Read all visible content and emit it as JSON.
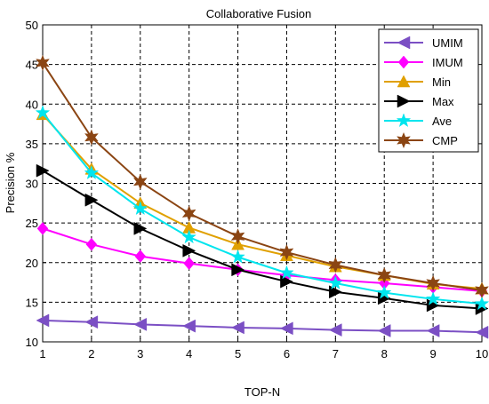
{
  "chart_data": {
    "type": "line",
    "title": "Collaborative Fusion",
    "xlabel": "TOP-N",
    "ylabel": "Precision %",
    "x": [
      1,
      2,
      3,
      4,
      5,
      6,
      7,
      8,
      9,
      10
    ],
    "xlim": [
      1,
      10
    ],
    "ylim": [
      10,
      50
    ],
    "yticks": [
      10,
      15,
      20,
      25,
      30,
      35,
      40,
      45,
      50
    ],
    "grid": true,
    "legend_position": "top-right",
    "series": [
      {
        "name": "UMIM",
        "color": "#7b4fc4",
        "marker": "triangle-left",
        "values": [
          12.7,
          12.5,
          12.2,
          12.0,
          11.8,
          11.7,
          11.5,
          11.4,
          11.4,
          11.2
        ]
      },
      {
        "name": "IMUM",
        "color": "#ff00ff",
        "marker": "diamond",
        "values": [
          24.3,
          22.3,
          20.8,
          19.9,
          19.1,
          18.4,
          17.8,
          17.4,
          16.9,
          16.4
        ]
      },
      {
        "name": "Min",
        "color": "#e0a000",
        "marker": "triangle-up",
        "values": [
          38.7,
          31.8,
          27.5,
          24.4,
          22.3,
          20.9,
          19.5,
          18.4,
          17.3,
          16.7
        ]
      },
      {
        "name": "Max",
        "color": "#000000",
        "marker": "triangle-right",
        "values": [
          31.6,
          27.9,
          24.3,
          21.5,
          19.1,
          17.6,
          16.3,
          15.5,
          14.6,
          14.2
        ]
      },
      {
        "name": "Ave",
        "color": "#00e5ee",
        "marker": "star",
        "values": [
          38.9,
          31.3,
          26.8,
          23.2,
          20.7,
          18.7,
          17.4,
          16.2,
          15.4,
          14.8
        ]
      },
      {
        "name": "CMP",
        "color": "#8b4513",
        "marker": "hexagram",
        "values": [
          45.2,
          35.8,
          30.2,
          26.2,
          23.3,
          21.3,
          19.7,
          18.4,
          17.4,
          16.5
        ]
      }
    ]
  }
}
